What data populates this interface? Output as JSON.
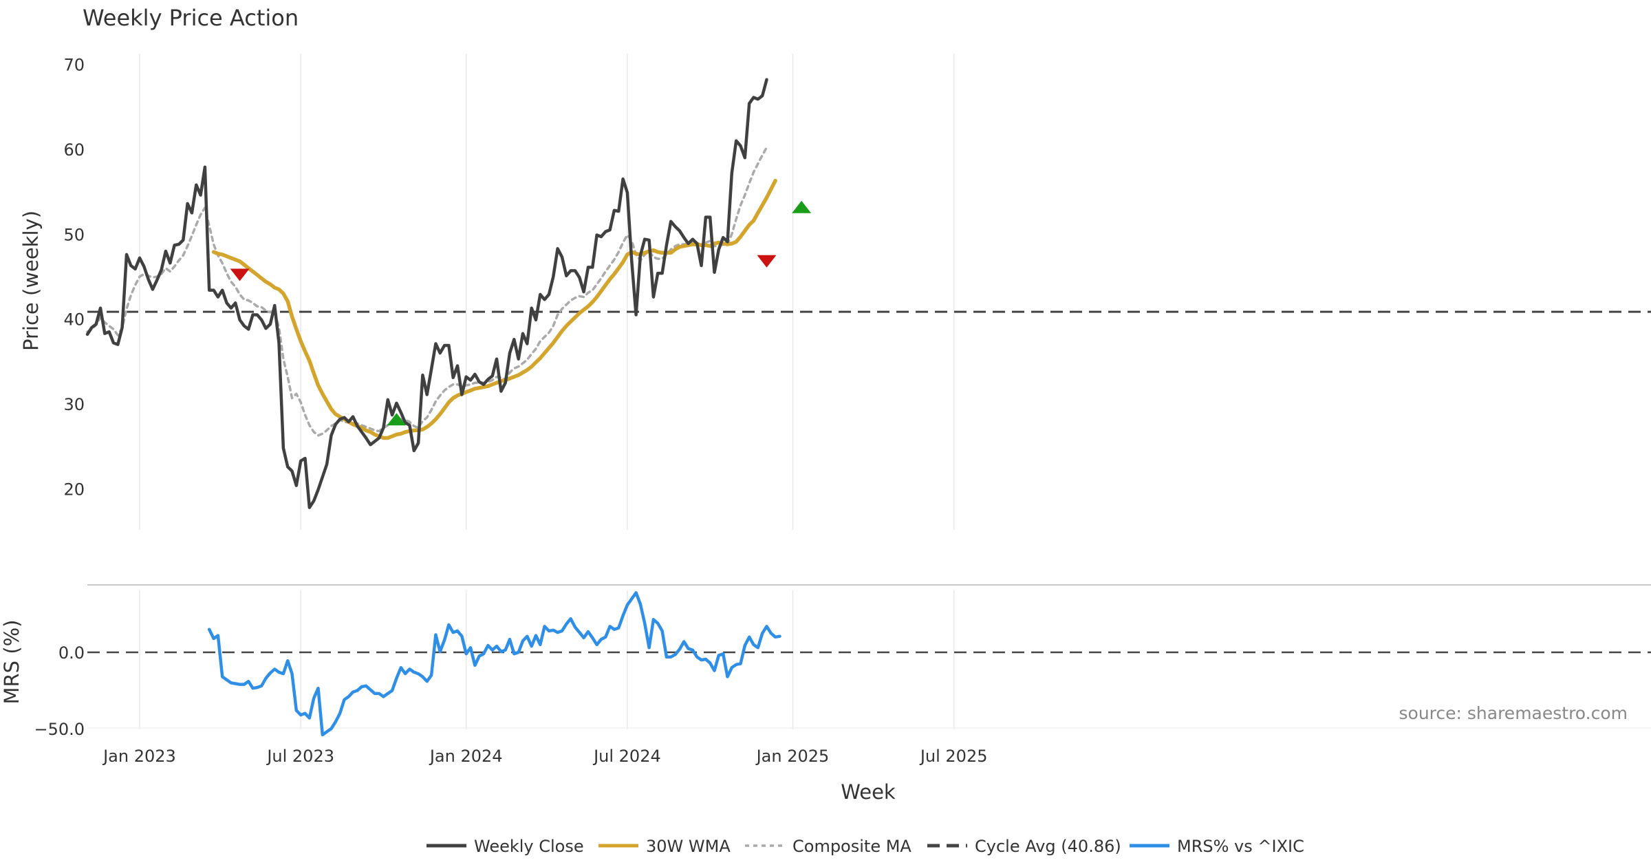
{
  "chart_data": {
    "type": "line",
    "title": "Weekly Price Action",
    "xlabel": "Week",
    "source": "source: sharemaestro.com",
    "x_ticks": [
      "Jan 2023",
      "Jul 2023",
      "Jan 2024",
      "Jul 2024",
      "Jan 2025",
      "Jul 2025"
    ],
    "colors": {
      "close": "#404040",
      "wma": "#d4a52c",
      "composite": "#aaaaaa",
      "cycle": "#444444",
      "mrs": "#2f8fe6",
      "buy": "#1a9e1a",
      "sell": "#cc1111",
      "grid": "#e8e8e8"
    },
    "price_panel": {
      "ylabel": "Price (weekly)",
      "ylim": [
        15,
        71.5
      ],
      "y_ticks": [
        20,
        30,
        40,
        50,
        60,
        70
      ],
      "cycle_avg": 40.86,
      "series": [
        {
          "name": "Weekly Close",
          "key": "close",
          "values": [
            38.2,
            39,
            39.4,
            41.3,
            38.3,
            38.5,
            37.2,
            37,
            39,
            47.6,
            46.3,
            45.9,
            47.2,
            46.2,
            44.7,
            43.5,
            44.6,
            45.8,
            48,
            46.6,
            48.7,
            48.8,
            49.3,
            53.6,
            52.5,
            55.8,
            54.6,
            57.9,
            43.4,
            43.4,
            42.6,
            43.4,
            41.9,
            41.3,
            41.9,
            39.9,
            39.2,
            38.8,
            40.5,
            40.5,
            39.9,
            38.9,
            39.4,
            41.6,
            37.2,
            24.8,
            22.6,
            22.1,
            20.4,
            23.3,
            23.6,
            17.8,
            18.6,
            19.9,
            21.4,
            22.9,
            26.3,
            27.6,
            28.2,
            28.4,
            27.9,
            28.5,
            27.4,
            26.7,
            26,
            25.2,
            25.6,
            26,
            27.2,
            30.5,
            28.7,
            30.1,
            29,
            27.8,
            27.5,
            24.5,
            25.4,
            33.4,
            31.1,
            34.1,
            37.1,
            36,
            36.9,
            36.9,
            33.1,
            34.5,
            31.1,
            33.2,
            32.8,
            33.5,
            32.6,
            32.3,
            32.9,
            33.3,
            35.3,
            31.5,
            32.5,
            36,
            37.6,
            35.3,
            38.3,
            37.1,
            41.3,
            39.9,
            42.9,
            42.3,
            42.9,
            45,
            48.3,
            47.3,
            45.1,
            45.7,
            45.7,
            44.9,
            43.2,
            46.1,
            46.1,
            49.9,
            49.7,
            50.3,
            50.5,
            52.8,
            52.7,
            56.5,
            54.9,
            46.8,
            40.5,
            47.5,
            49.4,
            49.3,
            42.6,
            45.4,
            45.4,
            48.7,
            51.5,
            50.9,
            50.4,
            49.6,
            48.9,
            49.4,
            48.9,
            46.3,
            52,
            52,
            45.5,
            48.2,
            49.6,
            49.1,
            57.2,
            61,
            60.4,
            59,
            65.4,
            66.1,
            65.9,
            66.3,
            68.2
          ]
        },
        {
          "name": "30W WMA",
          "key": "wma",
          "start": 29,
          "values": [
            47.9,
            47.7,
            47.6,
            47.4,
            47.2,
            47,
            46.8,
            46.4,
            46,
            45.6,
            45.2,
            44.8,
            44.4,
            44.1,
            43.7,
            43.5,
            43,
            42.1,
            40.3,
            38.8,
            37.4,
            36.2,
            35.1,
            33.6,
            32.2,
            31.2,
            30.3,
            29.4,
            28.8,
            28.5,
            28.2,
            27.9,
            27.6,
            27.4,
            27.2,
            26.9,
            26.7,
            26.4,
            26.2,
            26,
            26,
            26.2,
            26.4,
            26.5,
            26.7,
            26.8,
            26.9,
            26.9,
            27,
            27.3,
            27.7,
            28.2,
            28.8,
            29.5,
            30.2,
            30.7,
            31,
            31.2,
            31.4,
            31.6,
            31.8,
            31.9,
            32,
            32.1,
            32.3,
            32.5,
            32.7,
            32.8,
            33,
            33.2,
            33.4,
            33.7,
            34,
            34.4,
            34.9,
            35.4,
            36,
            36.6,
            37.2,
            37.9,
            38.6,
            39.2,
            39.7,
            40.2,
            40.7,
            41.1,
            41.5,
            42,
            42.6,
            43.3,
            44,
            44.7,
            45.3,
            46,
            46.7,
            47.6,
            47.9,
            47.7,
            47.6,
            47.8,
            48,
            48.1,
            47.9,
            47.8,
            47.8,
            47.8,
            48.2,
            48.5,
            48.6,
            48.7,
            48.8,
            48.8,
            48.7,
            48.7,
            48.6,
            48.9,
            49,
            48.9,
            48.8,
            48.9,
            49.1,
            49.7,
            50.4,
            51.1,
            51.6,
            52.5,
            53.4,
            54.3,
            55.3,
            56.3
          ]
        },
        {
          "name": "Composite MA",
          "key": "composite",
          "values": [
            38.5,
            38.8,
            39.3,
            40.2,
            39.6,
            39.2,
            38.8,
            38.1,
            38.9,
            41.2,
            42.8,
            44,
            45,
            45.3,
            45.1,
            44.9,
            45,
            45.3,
            46,
            45.6,
            46.2,
            46.9,
            47.5,
            48.6,
            49.8,
            51.1,
            52.3,
            53.1,
            51,
            48.8,
            47.5,
            46.6,
            45.4,
            44.4,
            43.8,
            42.9,
            42.3,
            42.2,
            41.9,
            41.5,
            41.4,
            41,
            40.8,
            40.9,
            39,
            35.3,
            33.2,
            30.7,
            31.2,
            30.2,
            28.7,
            27.5,
            26.7,
            26.3,
            26.5,
            26.9,
            27.4,
            27.7,
            28.1,
            27.9,
            27.8,
            27.8,
            27.7,
            27.5,
            27.3,
            27.1,
            26.9,
            26.8,
            27.2,
            27.5,
            27.8,
            28.1,
            28.2,
            28.1,
            27.9,
            27.4,
            27.2,
            28,
            28.4,
            29.3,
            30.3,
            31,
            31.6,
            32,
            32.3,
            32.3,
            32.1,
            32.2,
            32.3,
            32.5,
            32.5,
            32.5,
            32.6,
            32.8,
            33.2,
            33.1,
            32.9,
            33.7,
            34.2,
            34.4,
            34.8,
            35.2,
            35.9,
            36.5,
            37.4,
            37.9,
            38.4,
            39.2,
            40.5,
            41.2,
            41.7,
            42.2,
            42.5,
            42.7,
            42.6,
            43.1,
            43.4,
            44.1,
            44.8,
            45.6,
            46.3,
            47,
            47.9,
            49,
            49.9,
            49.2,
            47.6,
            46.9,
            47.6,
            48,
            47.3,
            47.1,
            47.1,
            47.6,
            48.2,
            48.6,
            48.8,
            48.8,
            48.9,
            49,
            49,
            48.7,
            49,
            49.2,
            48.6,
            48.6,
            48.8,
            48.8,
            50,
            51.8,
            53.4,
            54.6,
            56,
            57.3,
            58.3,
            59.3,
            60.2
          ]
        }
      ],
      "markers": [
        {
          "type": "sell",
          "x": 35,
          "y": 45.2
        },
        {
          "type": "buy",
          "x": 71,
          "y": 28.2
        },
        {
          "type": "sell",
          "x": 156,
          "y": 46.8
        },
        {
          "type": "buy",
          "x": 164,
          "y": 53.2
        }
      ]
    },
    "mrs_panel": {
      "ylabel": "MRS (%)",
      "ylim": [
        -54,
        42
      ],
      "y_ticks": [
        0.0,
        -50.0
      ],
      "y_tick_labels": [
        "0.0",
        "−50.0"
      ],
      "series": [
        {
          "name": "MRS% vs ^IXIC",
          "key": "mrs",
          "start": 28,
          "values": [
            15,
            9,
            11,
            -16,
            -18,
            -20,
            -20.5,
            -21,
            -21,
            -19,
            -23.5,
            -23,
            -22,
            -17,
            -13.5,
            -11,
            -13,
            -14,
            -5.5,
            -14,
            -38,
            -41,
            -40,
            -43,
            -30,
            -23.5,
            -54,
            -52,
            -50,
            -45.5,
            -40,
            -31,
            -29,
            -26,
            -25,
            -22.5,
            -22,
            -24.5,
            -27,
            -27,
            -29,
            -27,
            -25,
            -17,
            -10,
            -14,
            -11,
            -13,
            -14,
            -16,
            -19,
            -15,
            11.5,
            0.5,
            8,
            18,
            13,
            14,
            10.5,
            -1,
            3,
            -8.5,
            -2.5,
            -1,
            4.5,
            1.5,
            4,
            0.5,
            1.5,
            8.5,
            -1,
            0,
            7.5,
            10.5,
            4,
            11,
            5,
            17,
            14,
            14.5,
            13,
            14,
            18.5,
            22,
            16.5,
            13,
            9.5,
            13.5,
            9.5,
            5,
            8.5,
            10,
            17,
            15,
            16,
            24,
            31,
            35,
            39,
            31.5,
            19,
            3,
            21.5,
            19,
            14,
            -3,
            -3,
            -1.5,
            2,
            7,
            2.5,
            1.5,
            -3,
            -5,
            -4.5,
            -7,
            -12,
            -2,
            -1,
            -16,
            -10,
            -8,
            -7.5,
            4.5,
            10,
            5,
            3,
            12.5,
            17,
            12.5,
            10,
            10.5
          ]
        }
      ]
    },
    "legend": [
      {
        "label": "Weekly Close",
        "key": "close",
        "style": "solid"
      },
      {
        "label": "30W WMA",
        "key": "wma",
        "style": "solid"
      },
      {
        "label": "Composite MA",
        "key": "composite",
        "style": "dotted"
      },
      {
        "label": "Cycle Avg (40.86)",
        "key": "cycle",
        "style": "dashed"
      },
      {
        "label": "MRS% vs ^IXIC",
        "key": "mrs",
        "style": "solid"
      }
    ]
  }
}
